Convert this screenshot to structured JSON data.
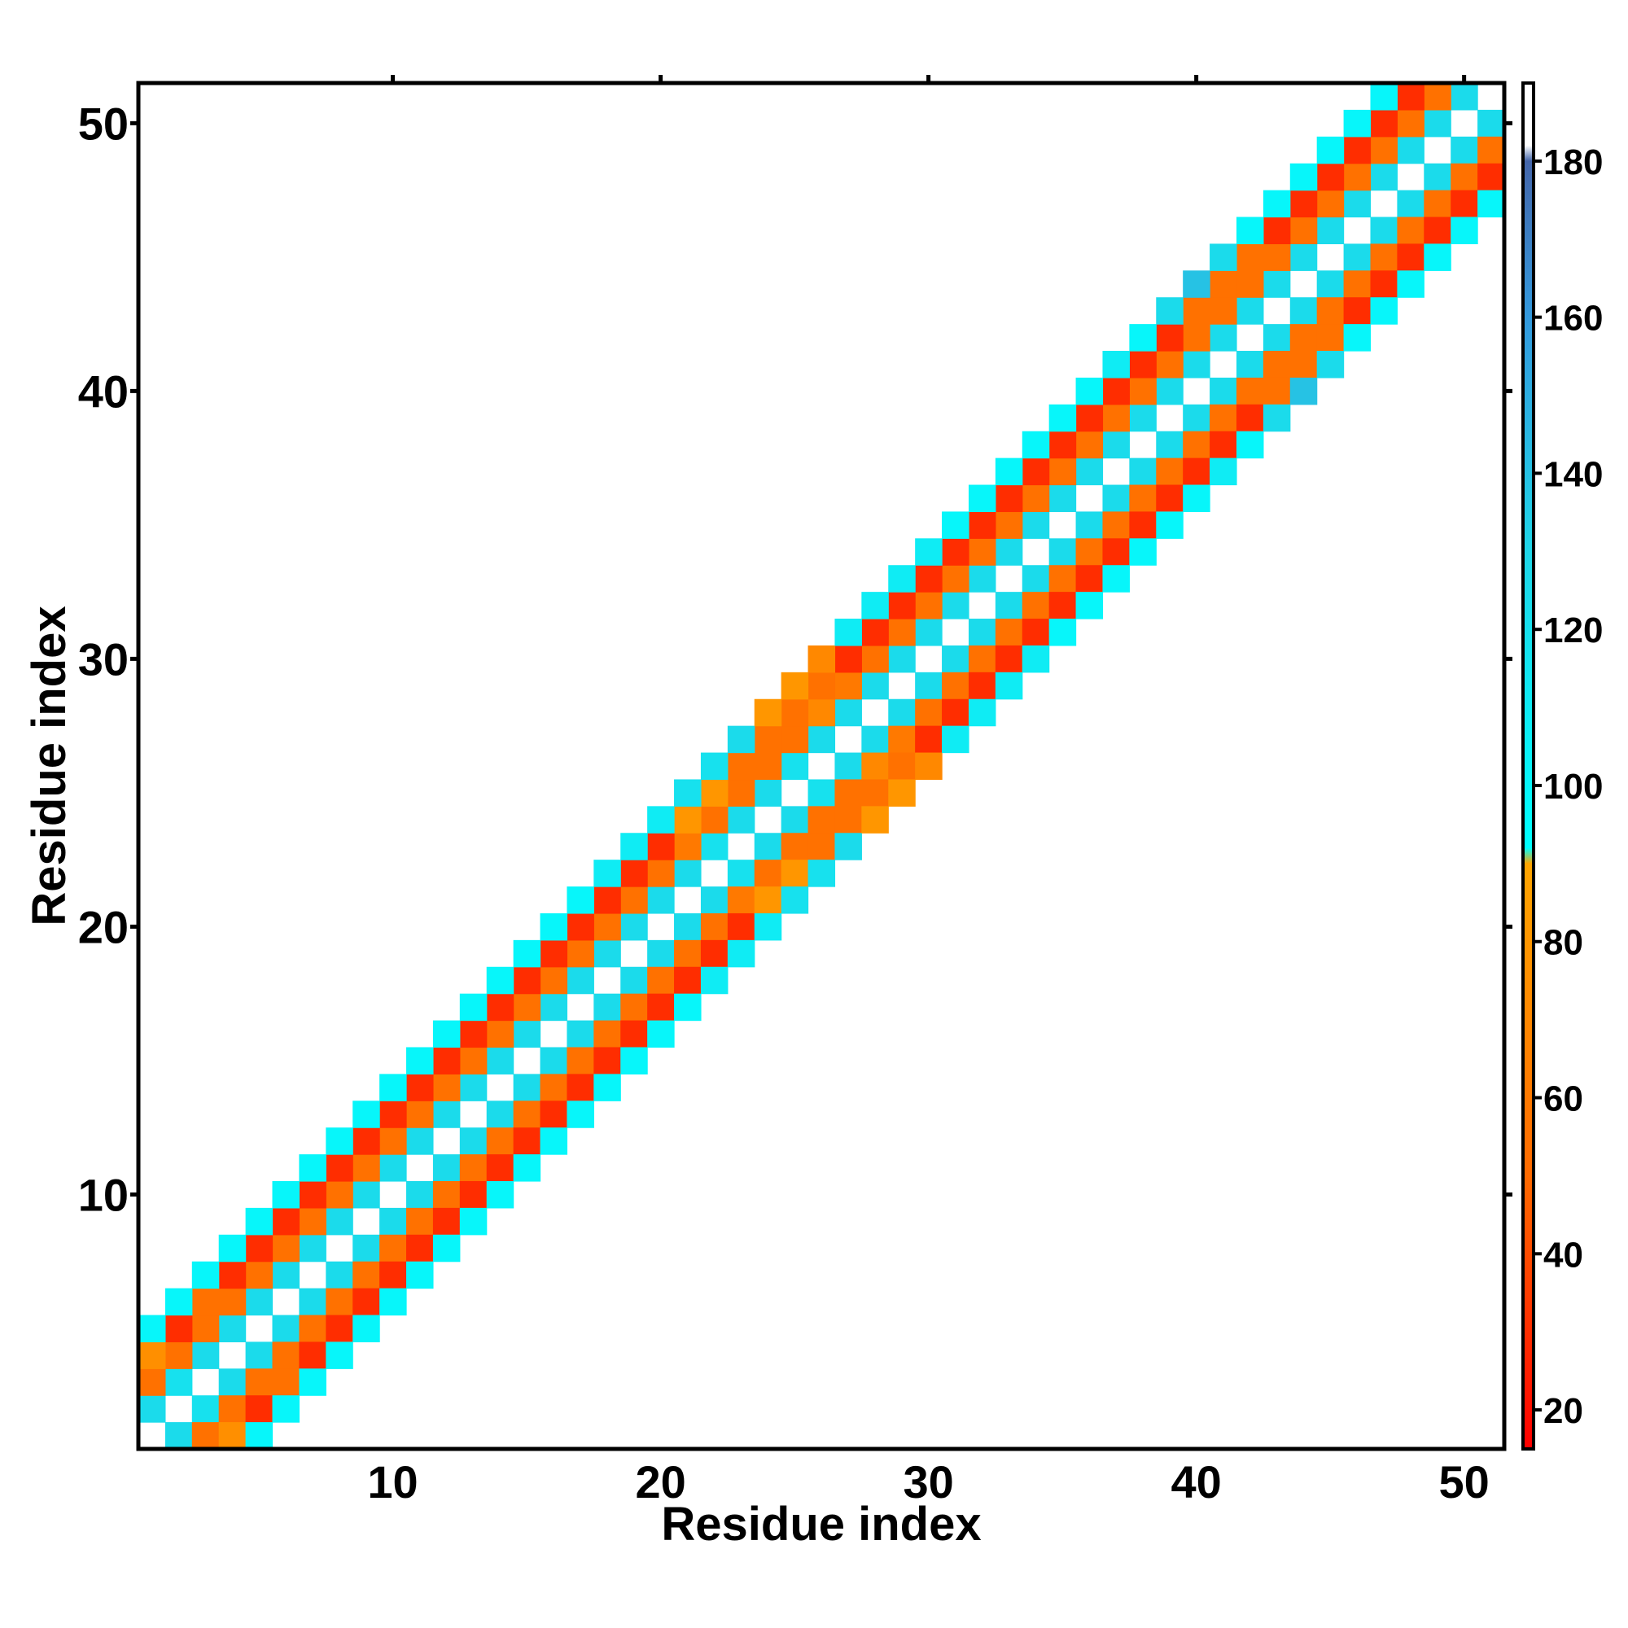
{
  "chart_data": {
    "type": "heatmap",
    "title": "",
    "xlabel": "Residue index",
    "ylabel": "Residue index",
    "x_range": [
      0.5,
      51.5
    ],
    "y_range": [
      0.5,
      51.5
    ],
    "x_ticks": [
      10,
      20,
      30,
      40,
      50
    ],
    "y_ticks": [
      10,
      20,
      30,
      40,
      50
    ],
    "colorbar": {
      "range": [
        15,
        190
      ],
      "ticks": [
        20,
        40,
        60,
        80,
        100,
        120,
        140,
        160,
        180
      ],
      "stops": [
        {
          "value": 15,
          "color": "#ff0000"
        },
        {
          "value": 50,
          "color": "#ff6a00"
        },
        {
          "value": 90,
          "color": "#ffa500"
        },
        {
          "value": 92,
          "color": "#00ffff"
        },
        {
          "value": 130,
          "color": "#1fd6e8"
        },
        {
          "value": 160,
          "color": "#3399dd"
        },
        {
          "value": 180,
          "color": "#4466aa"
        },
        {
          "value": 182,
          "color": "#ffffff"
        },
        {
          "value": 190,
          "color": "#ffffff"
        }
      ]
    },
    "diagonal_value": 190,
    "pattern": "symmetric band around the diagonal (|i-j| <= 4)",
    "offsets": [
      {
        "d": 1,
        "values": [
          125,
          120,
          125,
          125,
          125,
          125,
          125,
          125,
          125,
          125,
          125,
          125,
          125,
          125,
          125,
          125,
          125,
          125,
          125,
          125,
          125,
          120,
          125,
          125,
          120,
          125,
          125,
          125,
          125,
          125,
          125,
          125,
          125,
          125,
          125,
          125,
          125,
          125,
          125,
          125,
          125,
          125,
          125,
          125,
          125,
          125,
          125,
          125,
          125,
          125
        ]
      },
      {
        "d": 2,
        "values": [
          55,
          55,
          55,
          55,
          55,
          55,
          55,
          55,
          55,
          55,
          55,
          55,
          55,
          55,
          55,
          55,
          55,
          55,
          55,
          55,
          60,
          55,
          55,
          55,
          55,
          70,
          60,
          55,
          55,
          55,
          55,
          55,
          55,
          55,
          55,
          55,
          55,
          55,
          55,
          55,
          55,
          55,
          55,
          55,
          55,
          55,
          55,
          55,
          55
        ]
      },
      {
        "d": 3,
        "values": [
          75,
          30,
          55,
          30,
          30,
          30,
          30,
          30,
          30,
          30,
          30,
          30,
          30,
          30,
          30,
          30,
          30,
          30,
          30,
          30,
          80,
          80,
          55,
          55,
          55,
          55,
          30,
          30,
          30,
          30,
          30,
          30,
          30,
          30,
          30,
          30,
          30,
          30,
          30,
          55,
          55,
          55,
          30,
          30,
          30,
          30,
          30,
          30
        ]
      },
      {
        "d": 4,
        "values": [
          100,
          100,
          100,
          100,
          100,
          100,
          100,
          100,
          100,
          100,
          100,
          100,
          100,
          100,
          100,
          100,
          100,
          110,
          110,
          110,
          120,
          120,
          125,
          80,
          80,
          70,
          110,
          110,
          110,
          110,
          100,
          100,
          100,
          100,
          100,
          100,
          110,
          100,
          125,
          140,
          125,
          100,
          100,
          100,
          100,
          100,
          100
        ]
      }
    ]
  }
}
